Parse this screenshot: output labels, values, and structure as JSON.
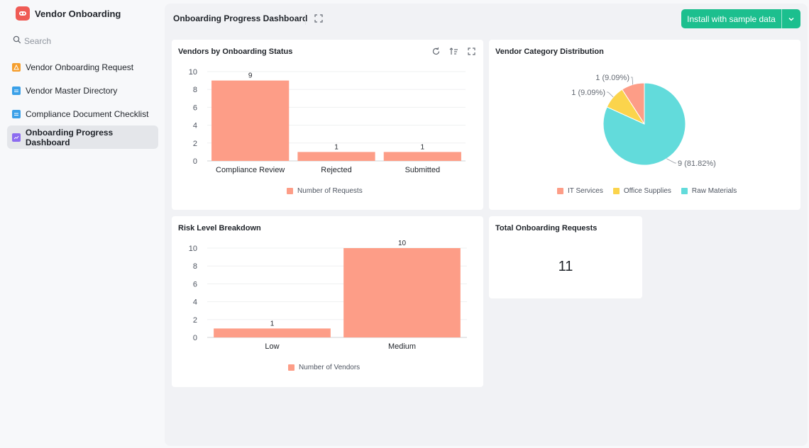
{
  "sidebar": {
    "app_title": "Vendor Onboarding",
    "search_placeholder": "Search",
    "items": [
      {
        "label": "Vendor Onboarding Request",
        "icon": "form-icon",
        "color": "#f59e2d"
      },
      {
        "label": "Vendor Master Directory",
        "icon": "table-icon",
        "color": "#3aa0e8"
      },
      {
        "label": "Compliance Document Checklist",
        "icon": "table-icon",
        "color": "#3aa0e8"
      },
      {
        "label": "Onboarding Progress Dashboard",
        "icon": "dashboard-icon",
        "color": "#8c6cf0",
        "active": true
      }
    ]
  },
  "header": {
    "title": "Onboarding Progress Dashboard",
    "install_label": "Install with sample data"
  },
  "colors": {
    "accent": "#1cbf8e",
    "bar": "#fd9d87",
    "pie": [
      "#fd9d87",
      "#fbd44c",
      "#62dbdb"
    ]
  },
  "cards": {
    "status": {
      "title": "Vendors by Onboarding Status",
      "legend": "Number of Requests"
    },
    "category": {
      "title": "Vendor Category Distribution"
    },
    "risk": {
      "title": "Risk Level Breakdown",
      "legend": "Number of Vendors"
    },
    "total": {
      "title": "Total Onboarding Requests",
      "value": "11"
    }
  },
  "chart_data": [
    {
      "type": "bar",
      "title": "Vendors by Onboarding Status",
      "categories": [
        "Compliance Review",
        "Rejected",
        "Submitted"
      ],
      "series": [
        {
          "name": "Number of Requests",
          "values": [
            9,
            1,
            1
          ]
        }
      ],
      "ylim": [
        0,
        10
      ],
      "yticks": [
        0,
        2,
        4,
        6,
        8,
        10
      ],
      "grid": true,
      "legend": "bottom"
    },
    {
      "type": "pie",
      "title": "Vendor Category Distribution",
      "labels": [
        "IT Services",
        "Office Supplies",
        "Raw Materials"
      ],
      "values": [
        1,
        1,
        9
      ],
      "data_labels": [
        "1 (9.09%)",
        "1 (9.09%)",
        "9 (81.82%)"
      ],
      "legend": "bottom"
    },
    {
      "type": "bar",
      "title": "Risk Level Breakdown",
      "categories": [
        "Low",
        "Medium"
      ],
      "series": [
        {
          "name": "Number of Vendors",
          "values": [
            1,
            10
          ]
        }
      ],
      "ylim": [
        0,
        10
      ],
      "yticks": [
        0,
        2,
        4,
        6,
        8,
        10
      ],
      "grid": true,
      "legend": "bottom"
    }
  ]
}
